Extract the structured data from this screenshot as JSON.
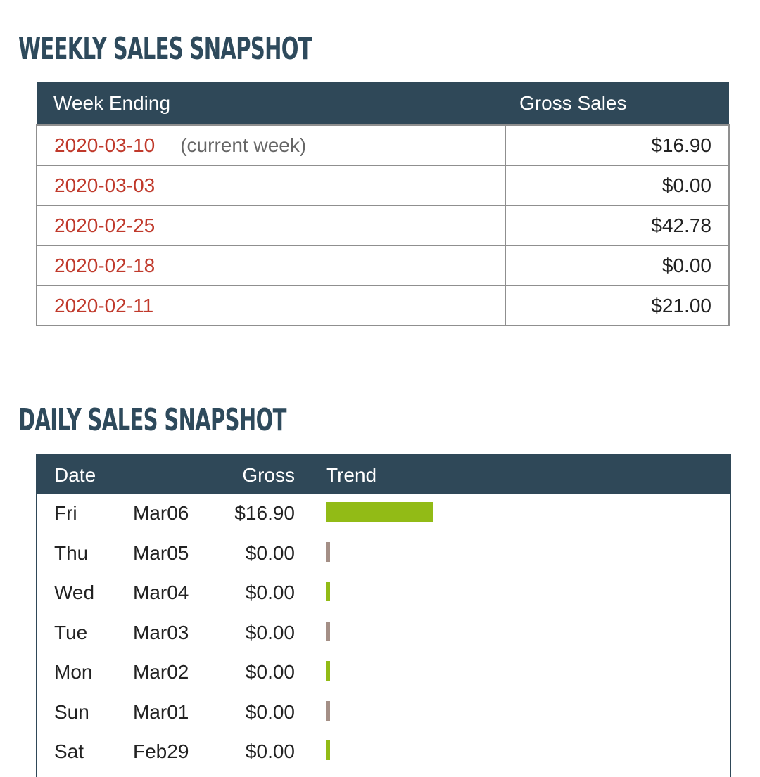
{
  "weekly": {
    "title": "WEEKLY SALES SNAPSHOT",
    "headers": {
      "week": "Week Ending",
      "gross": "Gross Sales"
    },
    "rows": [
      {
        "date": "2020-03-10",
        "note": "(current week)",
        "gross": "$16.90"
      },
      {
        "date": "2020-03-03",
        "note": "",
        "gross": "$0.00"
      },
      {
        "date": "2020-02-25",
        "note": "",
        "gross": "$42.78"
      },
      {
        "date": "2020-02-18",
        "note": "",
        "gross": "$0.00"
      },
      {
        "date": "2020-02-11",
        "note": "",
        "gross": "$21.00"
      }
    ]
  },
  "daily": {
    "title": "DAILY SALES SNAPSHOT",
    "headers": {
      "date": "Date",
      "gross": "Gross",
      "trend": "Trend"
    },
    "rows": [
      {
        "day": "Fri",
        "date": "Mar06",
        "gross": "$16.90",
        "trend_value": 16.9,
        "trend_color": "#92bb16"
      },
      {
        "day": "Thu",
        "date": "Mar05",
        "gross": "$0.00",
        "trend_value": 0,
        "trend_color": "#a48f86"
      },
      {
        "day": "Wed",
        "date": "Mar04",
        "gross": "$0.00",
        "trend_value": 0,
        "trend_color": "#92bb16"
      },
      {
        "day": "Tue",
        "date": "Mar03",
        "gross": "$0.00",
        "trend_value": 0,
        "trend_color": "#a48f86"
      },
      {
        "day": "Mon",
        "date": "Mar02",
        "gross": "$0.00",
        "trend_value": 0,
        "trend_color": "#92bb16"
      },
      {
        "day": "Sun",
        "date": "Mar01",
        "gross": "$0.00",
        "trend_value": 0,
        "trend_color": "#a48f86"
      },
      {
        "day": "Sat",
        "date": "Feb29",
        "gross": "$0.00",
        "trend_value": 0,
        "trend_color": "#92bb16"
      }
    ]
  },
  "colors": {
    "header_bg": "#2f4858",
    "title": "#2e4a5c",
    "date_link": "#c0392b",
    "bar_green": "#92bb16",
    "bar_brown": "#a48f86"
  }
}
